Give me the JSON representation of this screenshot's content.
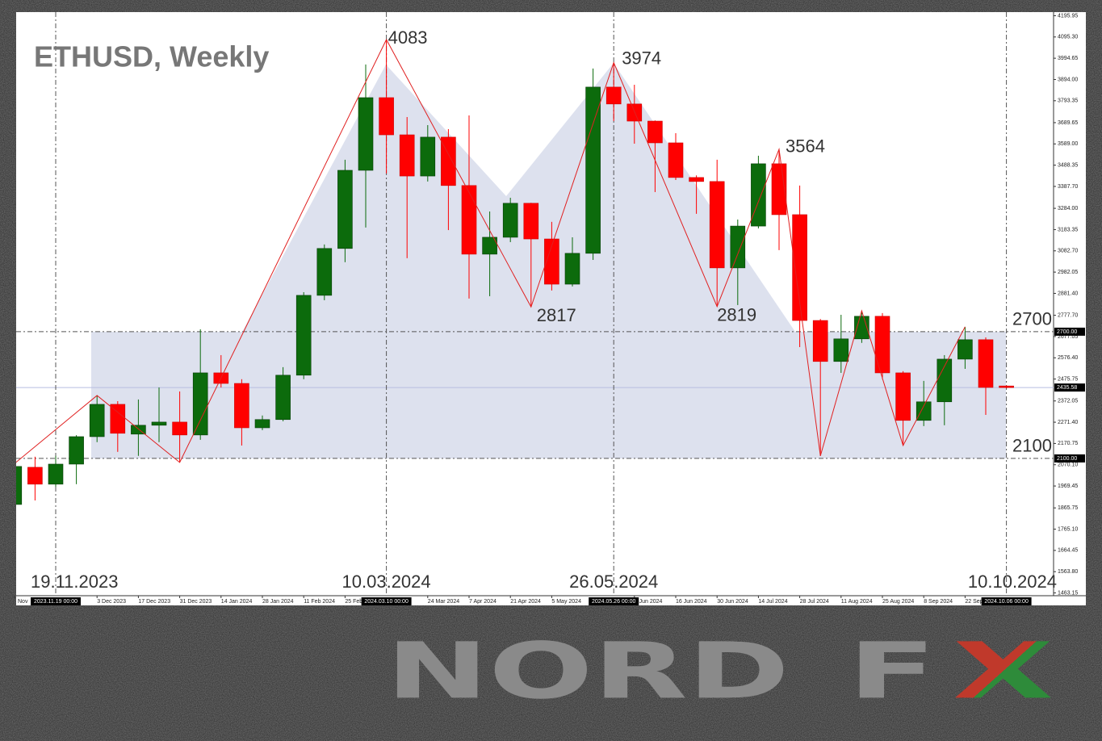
{
  "chart_data": {
    "type": "candlestick",
    "title": "ETHUSD, Weekly",
    "categories": [
      "Nov",
      null,
      null,
      null,
      "3 Dec 2023",
      null,
      "17 Dec 2023",
      null,
      "31 Dec 2023",
      null,
      "14 Jan 2024",
      null,
      "28 Jan 2024",
      null,
      "11 Feb 2024",
      null,
      "25 Feb 2024",
      null,
      null,
      null,
      "24 Mar 2024",
      null,
      "7 Apr 2024",
      null,
      "21 Apr 2024",
      null,
      "5 May 2024",
      null,
      null,
      null,
      "2 Jun 2024",
      null,
      "16 Jun 2024",
      null,
      "30 Jun 2024",
      null,
      "14 Jul 2024",
      null,
      "28 Jul 2024",
      null,
      "11 Aug 2024",
      null,
      "25 Aug 2024",
      null,
      "8 Sep 2024",
      null,
      "22 Sep 2024",
      null,
      null
    ],
    "open": [
      1882,
      2058,
      1978,
      2073,
      2203,
      2356,
      2215,
      2257,
      2272,
      2211,
      2505,
      2455,
      2245,
      2284,
      2494,
      2872,
      3094,
      3464,
      3808,
      3632,
      3437,
      3621,
      3392,
      3067,
      3147,
      3308,
      3139,
      2925,
      3071,
      3858,
      3778,
      3697,
      3594,
      3430,
      3411,
      3002,
      3200,
      3495,
      3254,
      2753,
      2559,
      2666,
      2773,
      2505,
      2280,
      2368,
      2570,
      2662,
      2443
    ],
    "high": [
      2075,
      2108,
      2112,
      2210,
      2398,
      2371,
      2379,
      2436,
      2417,
      2711,
      2589,
      2475,
      2303,
      2532,
      2887,
      3113,
      3514,
      3965,
      4083,
      3716,
      3678,
      3659,
      3724,
      3269,
      3334,
      3310,
      3220,
      3147,
      3946,
      3974,
      3869,
      3700,
      3640,
      3440,
      3514,
      3231,
      3533,
      3564,
      3392,
      2760,
      2780,
      2799,
      2788,
      2513,
      2467,
      2589,
      2723,
      2673,
      2446
    ],
    "low": [
      1870,
      1901,
      1966,
      1978,
      2177,
      2131,
      2112,
      2177,
      2081,
      2188,
      2436,
      2161,
      2234,
      2276,
      2475,
      2849,
      3029,
      3193,
      3449,
      3048,
      3411,
      3181,
      2857,
      2868,
      3124,
      2817,
      2895,
      2914,
      3040,
      3697,
      3590,
      3361,
      3418,
      3258,
      2819,
      2826,
      3189,
      3086,
      2627,
      2112,
      2505,
      2647,
      2475,
      2161,
      2253,
      2257,
      2524,
      2306,
      2432
    ],
    "close": [
      2062,
      1978,
      2073,
      2203,
      2356,
      2219,
      2257,
      2272,
      2211,
      2505,
      2455,
      2245,
      2284,
      2494,
      2872,
      3094,
      3464,
      3808,
      3632,
      3437,
      3621,
      3392,
      3067,
      3147,
      3308,
      3139,
      2925,
      3071,
      3858,
      3778,
      3697,
      3594,
      3430,
      3411,
      3002,
      3200,
      3495,
      3254,
      2753,
      2559,
      2666,
      2773,
      2505,
      2280,
      2368,
      2570,
      2662,
      2436,
      2435.58
    ],
    "up_color": "#0c6b0c",
    "down_color": "#ff0000",
    "ylim": [
      1450,
      4213
    ],
    "yticks": [
      4195.95,
      {
        "value": 4095.3,
        "label": "4095.30"
      },
      3994.65,
      {
        "value": 3894,
        "label": "3894.00"
      },
      3793.35,
      3689.65,
      {
        "value": 3589,
        "label": "3589.00"
      },
      3488.35,
      {
        "value": 3387.7,
        "label": "3387.70"
      },
      {
        "value": 3284,
        "label": "3284.00"
      },
      3183.35,
      {
        "value": 3082.7,
        "label": "3082.70"
      },
      2982.05,
      {
        "value": 2881.4,
        "label": "2881.40"
      },
      {
        "value": 2777.7,
        "label": "2777.70"
      },
      2677.05,
      {
        "value": 2576.4,
        "label": "2576.40"
      },
      2475.75,
      2372.05,
      {
        "value": 2271.4,
        "label": "2271.40"
      },
      2170.75,
      {
        "value": 2070.1,
        "label": "2070.10"
      },
      1969.45,
      1865.75,
      {
        "value": 1765.1,
        "label": "1765.10"
      },
      1664.45,
      {
        "value": 1563.8,
        "label": "1563.80"
      },
      1463.15
    ],
    "levels": [
      2700,
      2100
    ],
    "level_labels": [
      "2700.00",
      "2100.00"
    ],
    "last_price": 2435.58,
    "pivots": [
      4083,
      3974,
      3564,
      2817,
      2819
    ],
    "date_markers": [
      "19.11.2023",
      "10.03.2024",
      "26.05.2024",
      "10.10.2024"
    ],
    "date_highlights": [
      "2023.11.19 00:00",
      "2024.03.10 00:00",
      "2024.05.26 00:00",
      "2024.10.06 00:00"
    ]
  },
  "logo": [
    "NORD",
    "F",
    "X"
  ]
}
